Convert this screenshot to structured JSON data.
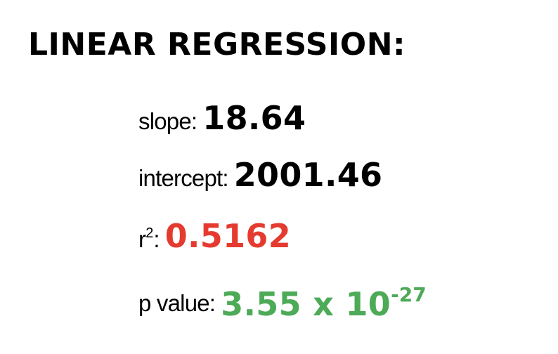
{
  "title": "LINEAR REGRESSION:",
  "stats": {
    "slope": {
      "label": "slope:",
      "value": "18.64",
      "color": "#000000"
    },
    "intercept": {
      "label": "intercept:",
      "value": "2001.46",
      "color": "#000000"
    },
    "r_squared": {
      "label_base": "r",
      "label_sup": "2",
      "label_suffix": ":",
      "value": "0.5162",
      "color": "#e53a2f"
    },
    "p_value": {
      "label": "p value:",
      "mantissa": "3.55 x 10",
      "exponent": "-27",
      "color": "#4daa57"
    }
  }
}
